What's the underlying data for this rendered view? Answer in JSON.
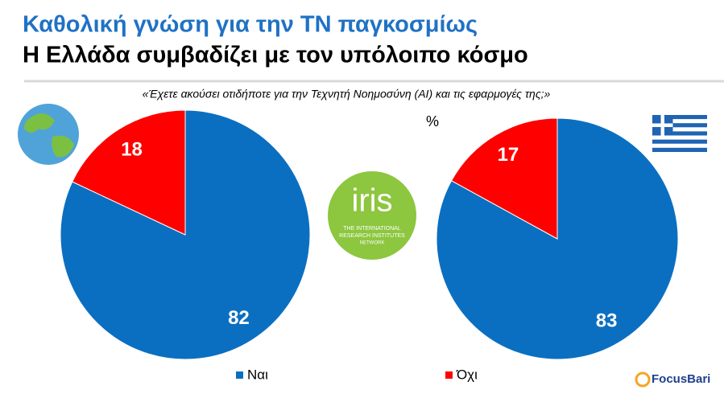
{
  "title": "Καθολική γνώση για την ΤΝ παγκοσμίως",
  "subtitle": "Η Ελλάδα συμβαδίζει με τον υπόλοιπο κόσμο",
  "question": "«Έχετε ακούσει οτιδήποτε για την Τεχνητή Νοημοσύνη (AI)  και τις εφαρμογές της;»",
  "unit": "%",
  "iris_logo": {
    "name": "iris",
    "tagline": [
      "THE INTERNATIONAL",
      "RESEARCH INSTITUTES",
      "NETWORK"
    ]
  },
  "brand": "FocusBari",
  "chart_data": [
    {
      "type": "pie",
      "categories": [
        "Ναι",
        "Όχι"
      ],
      "values": [
        82,
        18
      ],
      "colors": [
        "#0b6fc1",
        "#ff0000"
      ]
    },
    {
      "type": "pie",
      "categories": [
        "Ναι",
        "Όχι"
      ],
      "values": [
        83,
        17
      ],
      "colors": [
        "#0b6fc1",
        "#ff0000"
      ]
    }
  ]
}
